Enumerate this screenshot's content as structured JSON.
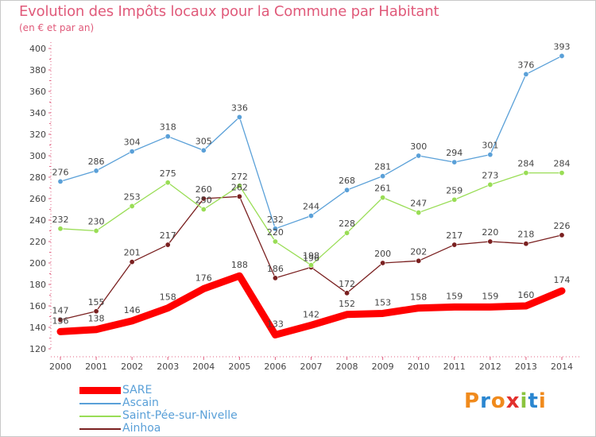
{
  "chart_data": {
    "type": "line",
    "title": "Evolution des Impôts locaux pour la Commune par Habitant",
    "subtitle": "(en € et par an)",
    "x": [
      "2000",
      "2001",
      "2002",
      "2003",
      "2004",
      "2005",
      "2006",
      "2007",
      "2008",
      "2009",
      "2010",
      "2011",
      "2012",
      "2013",
      "2014"
    ],
    "ylim": [
      120,
      400
    ],
    "yticks": [
      120,
      140,
      160,
      180,
      200,
      220,
      240,
      260,
      280,
      300,
      320,
      340,
      360,
      380,
      400
    ],
    "grid": false,
    "legend_position": "bottom-left",
    "series": [
      {
        "name": "SARE",
        "color": "#ff0000",
        "values": [
          136,
          138,
          146,
          158,
          176,
          188,
          133,
          142,
          152,
          153,
          158,
          159,
          159,
          160,
          174
        ]
      },
      {
        "name": "Ascain",
        "color": "#5aa0d8",
        "values": [
          276,
          286,
          304,
          318,
          305,
          336,
          232,
          244,
          268,
          281,
          300,
          294,
          301,
          376,
          393
        ]
      },
      {
        "name": "Saint-Pée-sur-Nivelle",
        "color": "#99dd55",
        "values": [
          232,
          230,
          253,
          275,
          250,
          272,
          220,
          198,
          228,
          261,
          247,
          259,
          273,
          284,
          284
        ]
      },
      {
        "name": "Ainhoa",
        "color": "#7a2020",
        "values": [
          147,
          155,
          201,
          217,
          260,
          262,
          186,
          196,
          172,
          200,
          202,
          217,
          220,
          218,
          226
        ]
      }
    ]
  },
  "logo": {
    "text": "Proxiti",
    "colors": [
      "#f08a1c",
      "#2a86d0",
      "#8bc43f",
      "#e2302d"
    ]
  }
}
